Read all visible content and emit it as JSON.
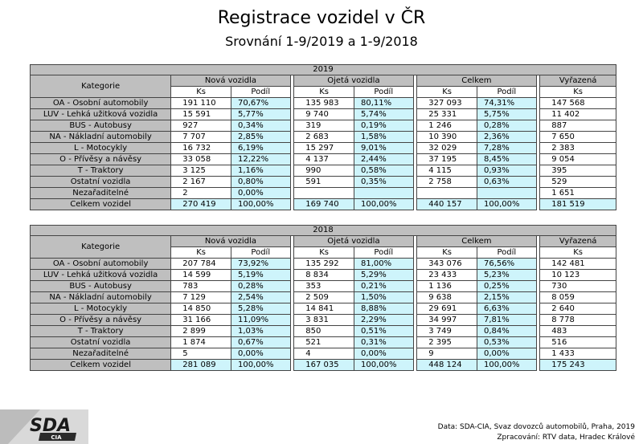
{
  "title": "Registrace vozidel v ČR",
  "subtitle": "Srovnání 1-9/2019 a 1-9/2018",
  "headers": {
    "category": "Kategorie",
    "new": "Nová vozidla",
    "used": "Ojetá vozidla",
    "total": "Celkem",
    "removed": "Vyřazená",
    "ks": "Ks",
    "share": "Podíl"
  },
  "tables": [
    {
      "year": "2019",
      "rows": [
        [
          "OA - Osobní automobily",
          "191 110",
          "70,67%",
          "135 983",
          "80,11%",
          "327 093",
          "74,31%",
          "147 568"
        ],
        [
          "LUV - Lehká užitková vozidla",
          "15 591",
          "5,77%",
          "9 740",
          "5,74%",
          "25 331",
          "5,75%",
          "11 402"
        ],
        [
          "BUS - Autobusy",
          "927",
          "0,34%",
          "319",
          "0,19%",
          "1 246",
          "0,28%",
          "887"
        ],
        [
          "NA - Nákladní automobily",
          "7 707",
          "2,85%",
          "2 683",
          "1,58%",
          "10 390",
          "2,36%",
          "7 650"
        ],
        [
          "L - Motocykly",
          "16 732",
          "6,19%",
          "15 297",
          "9,01%",
          "32 029",
          "7,28%",
          "2 383"
        ],
        [
          "O - Přívěsy a návěsy",
          "33 058",
          "12,22%",
          "4 137",
          "2,44%",
          "37 195",
          "8,45%",
          "9 054"
        ],
        [
          "T - Traktory",
          "3 125",
          "1,16%",
          "990",
          "0,58%",
          "4 115",
          "0,93%",
          "395"
        ],
        [
          "Ostatní vozidla",
          "2 167",
          "0,80%",
          "591",
          "0,35%",
          "2 758",
          "0,63%",
          "529"
        ],
        [
          "Nezařaditelné",
          "2",
          "0,00%",
          "",
          "",
          "",
          "",
          "1 651"
        ]
      ],
      "total": [
        "Celkem vozidel",
        "270 419",
        "100,00%",
        "169 740",
        "100,00%",
        "440 157",
        "100,00%",
        "181 519"
      ]
    },
    {
      "year": "2018",
      "rows": [
        [
          "OA - Osobní automobily",
          "207 784",
          "73,92%",
          "135 292",
          "81,00%",
          "343 076",
          "76,56%",
          "142 481"
        ],
        [
          "LUV - Lehká užitková vozidla",
          "14 599",
          "5,19%",
          "8 834",
          "5,29%",
          "23 433",
          "5,23%",
          "10 123"
        ],
        [
          "BUS - Autobusy",
          "783",
          "0,28%",
          "353",
          "0,21%",
          "1 136",
          "0,25%",
          "730"
        ],
        [
          "NA - Nákladní automobily",
          "7 129",
          "2,54%",
          "2 509",
          "1,50%",
          "9 638",
          "2,15%",
          "8 059"
        ],
        [
          "L - Motocykly",
          "14 850",
          "5,28%",
          "14 841",
          "8,88%",
          "29 691",
          "6,63%",
          "2 640"
        ],
        [
          "O - Přívěsy a návěsy",
          "31 166",
          "11,09%",
          "3 831",
          "2,29%",
          "34 997",
          "7,81%",
          "8 778"
        ],
        [
          "T - Traktory",
          "2 899",
          "1,03%",
          "850",
          "0,51%",
          "3 749",
          "0,84%",
          "483"
        ],
        [
          "Ostatní vozidla",
          "1 874",
          "0,67%",
          "521",
          "0,31%",
          "2 395",
          "0,53%",
          "516"
        ],
        [
          "Nezařaditelné",
          "5",
          "0,00%",
          "4",
          "0,00%",
          "9",
          "0,00%",
          "1 433"
        ]
      ],
      "total": [
        "Celkem vozidel",
        "281 089",
        "100,00%",
        "167 035",
        "100,00%",
        "448 124",
        "100,00%",
        "175 243"
      ]
    }
  ],
  "logo": {
    "main": "SDA",
    "sub": "CIA"
  },
  "footer": {
    "line1": "Data: SDA-CIA, Svaz dovozců automobilů, Praha, 2019",
    "line2": "Zpracování: RTV data, Hradec Králové"
  }
}
